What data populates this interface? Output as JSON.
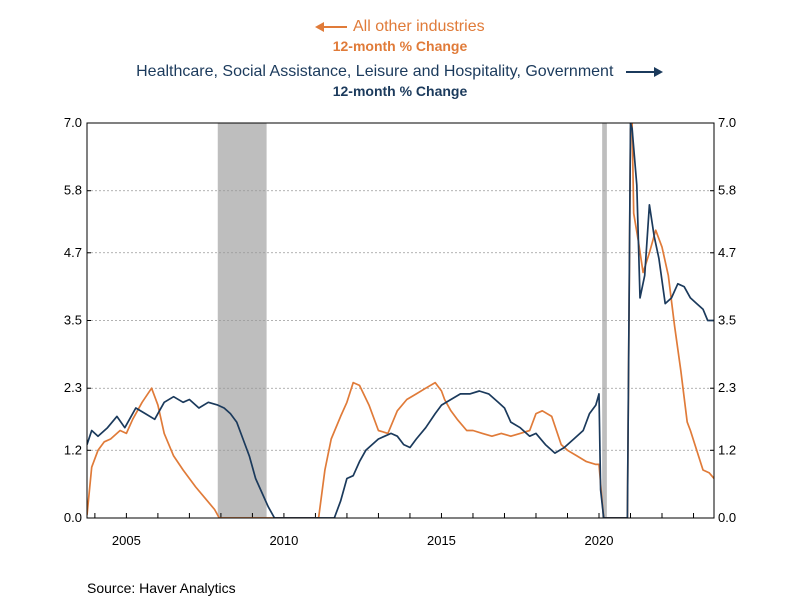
{
  "legend": {
    "series1_name": "All other industries",
    "series1_sub": "12-month % Change",
    "series2_name": "Healthcare, Social Assistance, Leisure and Hospitality, Government",
    "series2_sub": "12-month % Change"
  },
  "source": "Source:  Haver Analytics",
  "colors": {
    "orange": "#E07B39",
    "navy": "#1B3A5C",
    "recession": "#BEBEBE",
    "grid": "#999999"
  },
  "chart_data": {
    "type": "line",
    "xlim": [
      2003.75,
      2023.65
    ],
    "ylim": [
      0.0,
      7.0
    ],
    "yticks": [
      "0.0",
      "1.2",
      "2.3",
      "3.5",
      "4.7",
      "5.8",
      "7.0"
    ],
    "xticks": [
      "2005",
      "2010",
      "2015",
      "2020"
    ],
    "recessions": [
      [
        2007.9,
        2009.45
      ],
      [
        2020.1,
        2020.25
      ]
    ],
    "series": [
      {
        "name": "All other industries",
        "axis": "left",
        "color": "#E07B39",
        "x": [
          2003.75,
          2003.9,
          2004.1,
          2004.3,
          2004.5,
          2004.8,
          2005.0,
          2005.2,
          2005.5,
          2005.8,
          2006.0,
          2006.2,
          2006.5,
          2006.8,
          2007.0,
          2007.2,
          2007.5,
          2007.8,
          2007.95,
          2011.1,
          2011.3,
          2011.5,
          2011.8,
          2012.0,
          2012.2,
          2012.4,
          2012.7,
          2013.0,
          2013.3,
          2013.6,
          2013.9,
          2014.2,
          2014.5,
          2014.8,
          2015.0,
          2015.1,
          2015.3,
          2015.5,
          2015.8,
          2016.0,
          2016.3,
          2016.6,
          2016.9,
          2017.2,
          2017.5,
          2017.8,
          2018.0,
          2018.2,
          2018.5,
          2018.8,
          2019.0,
          2019.3,
          2019.6,
          2019.9,
          2020.0,
          2020.1,
          2020.15,
          2020.9,
          2021.0,
          2021.05,
          2021.1,
          2021.25,
          2021.4,
          2021.6,
          2021.8,
          2022.0,
          2022.2,
          2022.4,
          2022.6,
          2022.8,
          2022.9,
          2023.1,
          2023.3,
          2023.5,
          2023.65
        ],
        "y": [
          0.05,
          0.9,
          1.2,
          1.35,
          1.4,
          1.55,
          1.5,
          1.75,
          2.05,
          2.3,
          2.0,
          1.5,
          1.1,
          0.85,
          0.7,
          0.55,
          0.35,
          0.15,
          0.0,
          0.0,
          0.85,
          1.4,
          1.8,
          2.05,
          2.4,
          2.35,
          2.0,
          1.55,
          1.5,
          1.9,
          2.1,
          2.2,
          2.3,
          2.4,
          2.25,
          2.1,
          1.9,
          1.75,
          1.55,
          1.55,
          1.5,
          1.45,
          1.5,
          1.45,
          1.5,
          1.55,
          1.85,
          1.9,
          1.8,
          1.3,
          1.2,
          1.1,
          1.0,
          0.95,
          0.95,
          0.3,
          0.0,
          0.0,
          6.9,
          7.0,
          5.4,
          4.9,
          4.35,
          4.7,
          5.1,
          4.8,
          4.3,
          3.4,
          2.6,
          1.7,
          1.55,
          1.2,
          0.85,
          0.8,
          0.7
        ]
      },
      {
        "name": "Healthcare, Social Assistance, Leisure and Hospitality, Government",
        "axis": "right",
        "color": "#1B3A5C",
        "x": [
          2003.75,
          2003.9,
          2004.1,
          2004.4,
          2004.7,
          2004.95,
          2005.1,
          2005.3,
          2005.6,
          2005.9,
          2006.2,
          2006.5,
          2006.8,
          2007.0,
          2007.3,
          2007.6,
          2007.9,
          2008.1,
          2008.3,
          2008.5,
          2008.7,
          2008.9,
          2009.1,
          2009.3,
          2009.5,
          2009.7,
          2009.9,
          2010.0,
          2010.1,
          2010.3,
          2010.6,
          2010.9,
          2011.0,
          2011.2,
          2011.4,
          2011.6,
          2011.8,
          2012.0,
          2012.2,
          2012.4,
          2012.6,
          2012.8,
          2013.0,
          2013.2,
          2013.4,
          2013.6,
          2013.8,
          2014.0,
          2014.2,
          2014.5,
          2014.8,
          2015.0,
          2015.3,
          2015.6,
          2015.9,
          2016.2,
          2016.5,
          2016.8,
          2017.0,
          2017.2,
          2017.5,
          2017.8,
          2018.0,
          2018.3,
          2018.6,
          2018.9,
          2019.2,
          2019.5,
          2019.7,
          2019.9,
          2020.0,
          2020.05,
          2020.15,
          2020.9,
          2021.0,
          2021.05,
          2021.2,
          2021.3,
          2021.45,
          2021.6,
          2021.75,
          2021.9,
          2022.1,
          2022.3,
          2022.5,
          2022.7,
          2022.9,
          2023.1,
          2023.3,
          2023.45,
          2023.65
        ],
        "y": [
          1.3,
          1.55,
          1.45,
          1.6,
          1.8,
          1.6,
          1.75,
          1.95,
          1.85,
          1.75,
          2.05,
          2.15,
          2.05,
          2.1,
          1.95,
          2.05,
          2.0,
          1.95,
          1.85,
          1.7,
          1.4,
          1.1,
          0.7,
          0.45,
          0.2,
          0.0,
          0.0,
          0.0,
          0.0,
          0.0,
          0.0,
          0.0,
          0.0,
          0.0,
          0.0,
          0.0,
          0.3,
          0.7,
          0.75,
          1.0,
          1.2,
          1.3,
          1.4,
          1.45,
          1.5,
          1.45,
          1.3,
          1.25,
          1.4,
          1.6,
          1.85,
          2.0,
          2.1,
          2.2,
          2.2,
          2.25,
          2.2,
          2.05,
          1.95,
          1.7,
          1.6,
          1.45,
          1.5,
          1.3,
          1.15,
          1.25,
          1.4,
          1.55,
          1.85,
          2.0,
          2.2,
          0.5,
          0.0,
          0.0,
          7.0,
          6.9,
          5.9,
          3.9,
          4.3,
          5.55,
          5.0,
          4.6,
          3.8,
          3.9,
          4.15,
          4.1,
          3.9,
          3.8,
          3.7,
          3.5,
          3.5
        ]
      }
    ]
  }
}
